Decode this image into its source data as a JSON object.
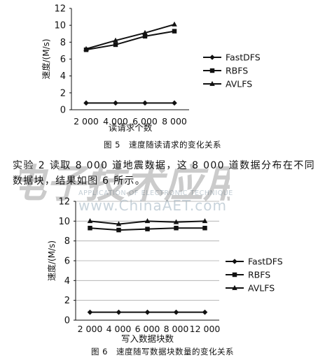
{
  "chart_data": [
    {
      "type": "line",
      "title": "",
      "xlabel": "读请求个数",
      "ylabel": "速度/(M/s)",
      "categories": [
        "2 000",
        "4 000",
        "6 000",
        "8 000"
      ],
      "ylim": [
        0,
        12
      ],
      "yticks": [
        0,
        2,
        4,
        6,
        8,
        10,
        12
      ],
      "grid": false,
      "legend_position": "right",
      "series": [
        {
          "name": "FastDFS",
          "marker": "diamond",
          "values": [
            0.8,
            0.8,
            0.8,
            0.8
          ]
        },
        {
          "name": "RBFS",
          "marker": "square",
          "values": [
            7.1,
            7.7,
            8.7,
            9.3
          ]
        },
        {
          "name": "AVLFS",
          "marker": "triangle",
          "values": [
            7.2,
            8.2,
            9.1,
            10.1
          ]
        }
      ]
    },
    {
      "type": "line",
      "title": "",
      "xlabel": "写入数据块数",
      "ylabel": "速度/(M/s)",
      "categories": [
        "2 000",
        "4 000",
        "6 000",
        "8 000",
        "12 000"
      ],
      "ylim": [
        0,
        12
      ],
      "yticks": [
        0,
        2,
        4,
        6,
        8,
        10,
        12
      ],
      "grid": true,
      "legend_position": "right",
      "series": [
        {
          "name": "FastDFS",
          "marker": "diamond",
          "values": [
            0.8,
            0.8,
            0.8,
            0.8,
            0.8
          ]
        },
        {
          "name": "RBFS",
          "marker": "square",
          "values": [
            9.3,
            9.1,
            9.2,
            9.3,
            9.3
          ]
        },
        {
          "name": "AVLFS",
          "marker": "triangle",
          "values": [
            10.0,
            9.7,
            10.0,
            9.9,
            10.0
          ]
        }
      ]
    }
  ],
  "captions": {
    "fig5": "图 5　速度随读请求的变化关系",
    "fig6": "图 6　速度随写数据块数量的变化关系"
  },
  "body_text": "实验 2 读取 8 000 道地震数据，这 8 000 道数据分布在不同数据块，结果如图 6 所示。",
  "watermark": {
    "logo_text": "电子技术应用",
    "subtitle": "APPLICATION OF ELECTRONIC TECHNIQUE",
    "url": "www.ChinaAET.com"
  },
  "colors": {
    "ink": "#111111",
    "grid": "#aaaaaa",
    "watermark_logo": "#e87a7a",
    "watermark_text": "#c8d3db"
  }
}
